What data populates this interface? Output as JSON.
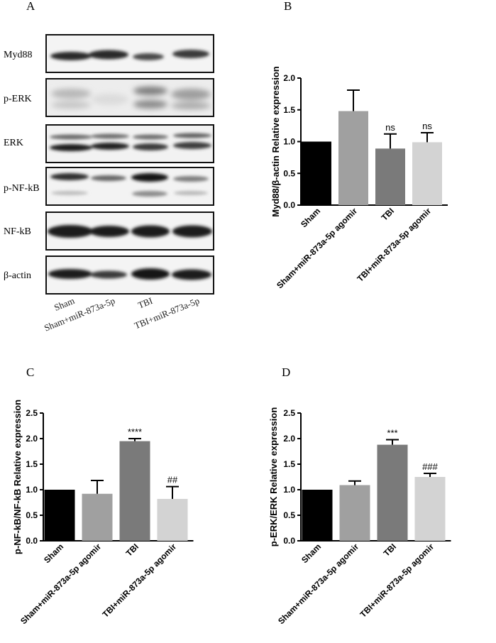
{
  "panels": {
    "A": "A",
    "B": "B",
    "C": "C",
    "D": "D"
  },
  "blot": {
    "rows": [
      "Myd88",
      "p-ERK",
      "ERK",
      "p-NF-kB",
      "NF-kB",
      "β-actin"
    ],
    "lanes": [
      "Sham",
      "Sham+miR-873a-5p",
      "TBI",
      "TBI+miR-873a-5p"
    ]
  },
  "chart_data": [
    {
      "type": "bar",
      "panel": "B",
      "categories": [
        "Sham",
        "Sham+miR-873a-5p agomir",
        "TBI",
        "TBI+miR-873a-5p agomir"
      ],
      "values": [
        1.0,
        1.48,
        0.89,
        0.99
      ],
      "errors": [
        0,
        0.33,
        0.23,
        0.15
      ],
      "annotations": [
        "",
        "",
        "ns",
        "ns"
      ],
      "colors": [
        "#000000",
        "#a0a0a0",
        "#7a7a7a",
        "#d3d3d3"
      ],
      "ylabel": "Myd88/β-actin Relative expression",
      "ylim": [
        0,
        2.0
      ],
      "yticks": [
        0.0,
        0.5,
        1.0,
        1.5,
        2.0
      ],
      "grid": false
    },
    {
      "type": "bar",
      "panel": "C",
      "categories": [
        "Sham",
        "Sham+miR-873a-5p agomir",
        "TBI",
        "TBI+miR-873a-5p agomir"
      ],
      "values": [
        1.0,
        0.92,
        1.95,
        0.82
      ],
      "errors": [
        0,
        0.26,
        0.05,
        0.24
      ],
      "annotations": [
        "",
        "",
        "****",
        "##"
      ],
      "colors": [
        "#000000",
        "#a0a0a0",
        "#7a7a7a",
        "#d3d3d3"
      ],
      "ylabel": "p-NF-kB/NF-kB Relative expression",
      "ylim": [
        0,
        2.5
      ],
      "yticks": [
        0.0,
        0.5,
        1.0,
        1.5,
        2.0,
        2.5
      ],
      "grid": false
    },
    {
      "type": "bar",
      "panel": "D",
      "categories": [
        "Sham",
        "Sham+miR-873a-5p agomir",
        "TBI",
        "TBI+miR-873a-5p agomir"
      ],
      "values": [
        1.0,
        1.09,
        1.88,
        1.25
      ],
      "errors": [
        0,
        0.08,
        0.1,
        0.07
      ],
      "annotations": [
        "",
        "",
        "***",
        "###"
      ],
      "colors": [
        "#000000",
        "#a0a0a0",
        "#7a7a7a",
        "#d3d3d3"
      ],
      "ylabel": "p-ERK/ERK Relative expression",
      "ylim": [
        0,
        2.5
      ],
      "yticks": [
        0.0,
        0.5,
        1.0,
        1.5,
        2.0,
        2.5
      ],
      "grid": false
    }
  ]
}
